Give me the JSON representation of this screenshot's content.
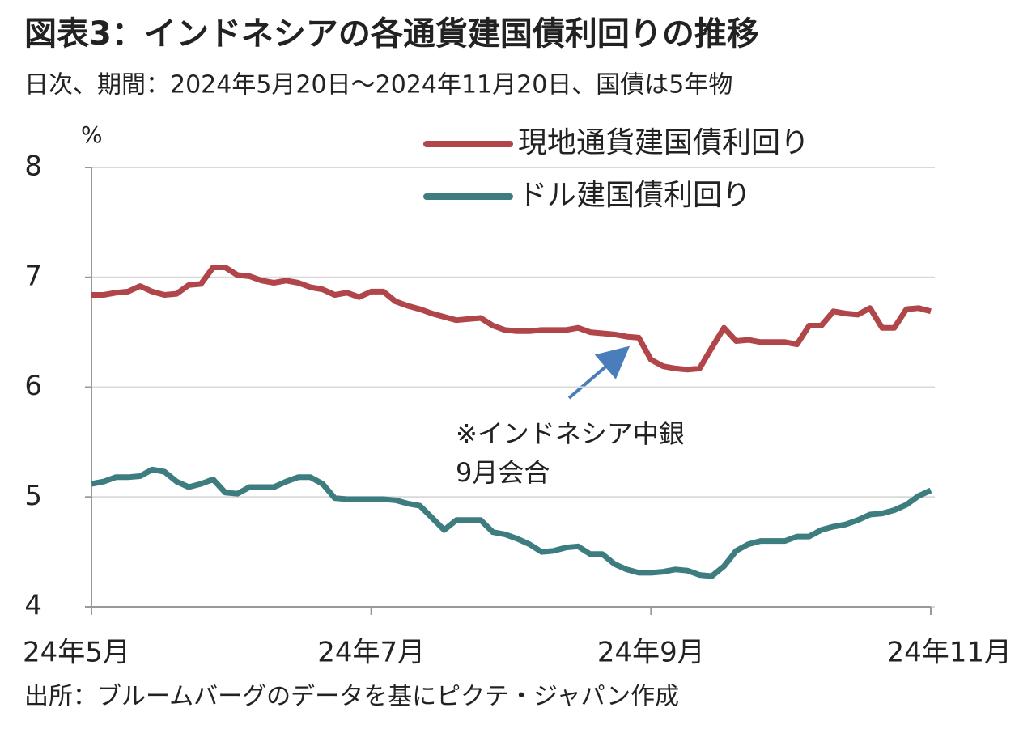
{
  "chart_data": {
    "type": "line",
    "title": "図表3：インドネシアの各通貨建国債利回りの推移",
    "subtitle": "日次、期間：2024年5月20日～2024年11月20日、国債は5年物",
    "ylabel": "%",
    "source": "出所：ブルームバーグのデータを基にピクテ・ジャパン作成",
    "annotation": [
      "※インドネシア中銀",
      "9月会合"
    ],
    "categories": [
      "24年5月",
      null,
      null,
      null,
      null,
      null,
      null,
      null,
      null,
      null,
      null,
      null,
      null,
      null,
      null,
      null,
      null,
      null,
      null,
      null,
      null,
      null,
      null,
      "24年7月",
      null,
      null,
      null,
      null,
      null,
      null,
      null,
      null,
      null,
      null,
      null,
      null,
      null,
      null,
      null,
      null,
      null,
      null,
      null,
      null,
      null,
      null,
      "24年9月",
      null,
      null,
      null,
      null,
      null,
      null,
      null,
      null,
      null,
      null,
      null,
      null,
      null,
      null,
      null,
      null,
      null,
      null,
      null,
      null,
      null,
      null,
      "24年11月"
    ],
    "series": [
      {
        "name": "現地通貨建国債利回り",
        "color": "#b0454a",
        "values": [
          6.84,
          6.84,
          6.86,
          6.87,
          6.92,
          6.87,
          6.84,
          6.85,
          6.93,
          6.94,
          7.09,
          7.09,
          7.02,
          7.01,
          6.97,
          6.95,
          6.97,
          6.95,
          6.91,
          6.89,
          6.84,
          6.86,
          6.82,
          6.87,
          6.87,
          6.78,
          6.74,
          6.71,
          6.67,
          6.64,
          6.61,
          6.62,
          6.63,
          6.56,
          6.52,
          6.51,
          6.51,
          6.52,
          6.52,
          6.52,
          6.54,
          6.5,
          6.49,
          6.48,
          6.46,
          6.45,
          6.25,
          6.19,
          6.17,
          6.16,
          6.17,
          6.36,
          6.54,
          6.42,
          6.43,
          6.41,
          6.41,
          6.41,
          6.39,
          6.56,
          6.56,
          6.69,
          6.67,
          6.66,
          6.72,
          6.54,
          6.54,
          6.71,
          6.72,
          6.69
        ]
      },
      {
        "name": "ドル建国債利回り",
        "color": "#3d7d80",
        "values": [
          5.12,
          5.14,
          5.18,
          5.18,
          5.19,
          5.25,
          5.23,
          5.14,
          5.09,
          5.12,
          5.16,
          5.04,
          5.03,
          5.09,
          5.09,
          5.09,
          5.14,
          5.18,
          5.18,
          5.12,
          4.99,
          4.98,
          4.98,
          4.98,
          4.98,
          4.97,
          4.94,
          4.92,
          4.81,
          4.7,
          4.79,
          4.79,
          4.79,
          4.68,
          4.66,
          4.62,
          4.57,
          4.5,
          4.51,
          4.54,
          4.55,
          4.48,
          4.48,
          4.39,
          4.34,
          4.31,
          4.31,
          4.32,
          4.34,
          4.33,
          4.29,
          4.28,
          4.37,
          4.51,
          4.57,
          4.6,
          4.6,
          4.6,
          4.64,
          4.64,
          4.7,
          4.73,
          4.75,
          4.79,
          4.84,
          4.85,
          4.88,
          4.93,
          5.01,
          5.06
        ]
      }
    ],
    "ylim": [
      4,
      8
    ],
    "yticks": [
      4,
      5,
      6,
      7,
      8
    ],
    "grid": true,
    "legend": "upper right"
  }
}
